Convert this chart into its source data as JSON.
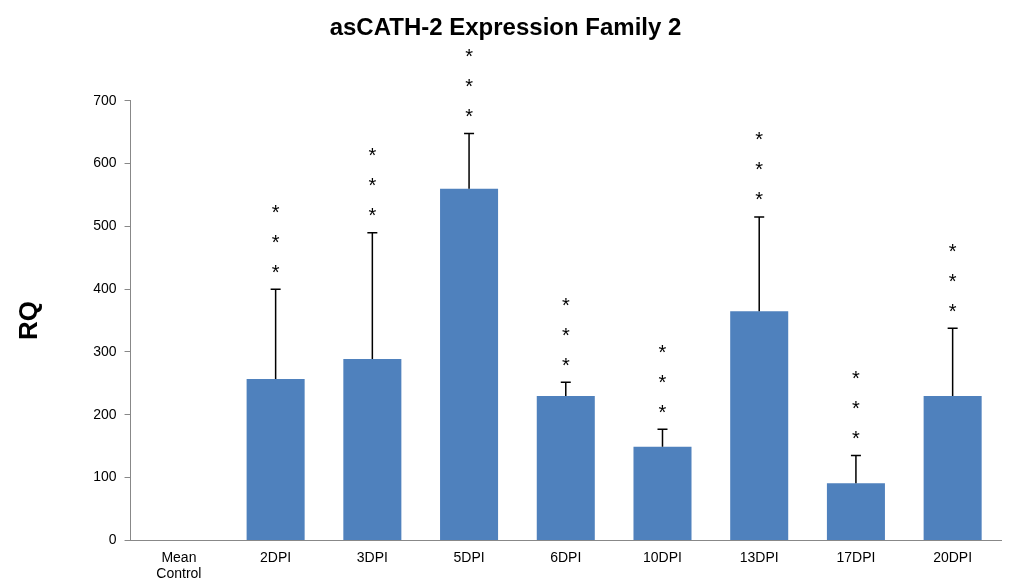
{
  "chart_data": {
    "type": "bar",
    "title": "asCATH-2 Expression Family 2",
    "ylabel": "RQ",
    "categories": [
      "Mean Control",
      "2DPI",
      "3DPI",
      "5DPI",
      "6DPI",
      "10DPI",
      "13DPI",
      "17DPI",
      "20DPI"
    ],
    "values": [
      null,
      257,
      289,
      560,
      230,
      149,
      365,
      91,
      230
    ],
    "color": "#4f81bd",
    "errors": [
      null,
      [
        257,
        400
      ],
      [
        289,
        490
      ],
      [
        560,
        648
      ],
      [
        230,
        252
      ],
      [
        149,
        177
      ],
      [
        365,
        515
      ],
      [
        91,
        135
      ],
      [
        230,
        338
      ]
    ],
    "ylim": [
      0,
      700
    ],
    "yticks": [
      0,
      100,
      200,
      300,
      400,
      500,
      600,
      700
    ],
    "grid": false,
    "legend": false,
    "annotations": [
      {
        "text": "***",
        "x": "2DPI",
        "y": 400
      },
      {
        "text": "***",
        "x": "3DPI",
        "y": 490
      },
      {
        "text": "***",
        "x": "5DPI",
        "y": 648
      },
      {
        "text": "***",
        "x": "6DPI",
        "y": 252
      },
      {
        "text": "***",
        "x": "10DPI",
        "y": 177
      },
      {
        "text": "***",
        "x": "13DPI",
        "y": 515
      },
      {
        "text": "***",
        "x": "17DPI",
        "y": 135
      },
      {
        "text": "***",
        "x": "20DPI",
        "y": 338
      }
    ]
  }
}
